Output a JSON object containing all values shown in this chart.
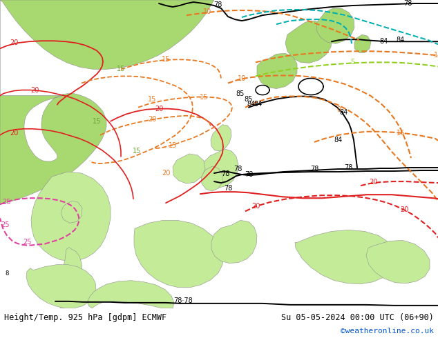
{
  "title_left": "Height/Temp. 925 hPa [gdpm] ECMWF",
  "title_right": "Su 05-05-2024 00:00 UTC (06+90)",
  "credit": "©weatheronline.co.uk",
  "background_color": "#ffffff",
  "ocean_color": "#d8d8d8",
  "land_dark_color": "#b8d890",
  "land_light_color": "#d0eaa0",
  "fig_width": 6.34,
  "fig_height": 4.9,
  "dpi": 100,
  "bottom_bar_height": 0.088,
  "title_fontsize": 8.5,
  "credit_fontsize": 8,
  "credit_color": "#0055cc"
}
